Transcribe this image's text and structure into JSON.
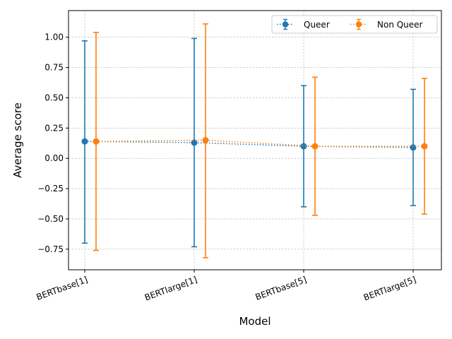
{
  "chart_data": {
    "type": "scatter",
    "xlabel": "Model",
    "ylabel": "Average score",
    "categories": [
      "BERTbase[1]",
      "BERTlarge[1]",
      "BERTbase[5]",
      "BERTlarge[5]"
    ],
    "ylim": [
      -0.92,
      1.22
    ],
    "yticks": [
      -0.75,
      -0.5,
      -0.25,
      0.0,
      0.25,
      0.5,
      0.75,
      1.0
    ],
    "ytick_labels": [
      "−0.75",
      "−0.50",
      "−0.25",
      "0.00",
      "0.25",
      "0.50",
      "0.75",
      "1.00"
    ],
    "grid": true,
    "legend_position": "top-right",
    "series": [
      {
        "name": "Queer",
        "color": "#1f77b4",
        "line_style": "dotted",
        "marker": "circle",
        "values": [
          0.14,
          0.13,
          0.1,
          0.09
        ],
        "error_lower": [
          -0.7,
          -0.73,
          -0.4,
          -0.39
        ],
        "error_upper": [
          0.97,
          0.99,
          0.6,
          0.57
        ]
      },
      {
        "name": "Non Queer",
        "color": "#ff7f0e",
        "line_style": "dotted",
        "marker": "circle",
        "values": [
          0.14,
          0.15,
          0.1,
          0.1
        ],
        "error_lower": [
          -0.76,
          -0.82,
          -0.47,
          -0.46
        ],
        "error_upper": [
          1.04,
          1.11,
          0.67,
          0.66
        ]
      }
    ]
  }
}
